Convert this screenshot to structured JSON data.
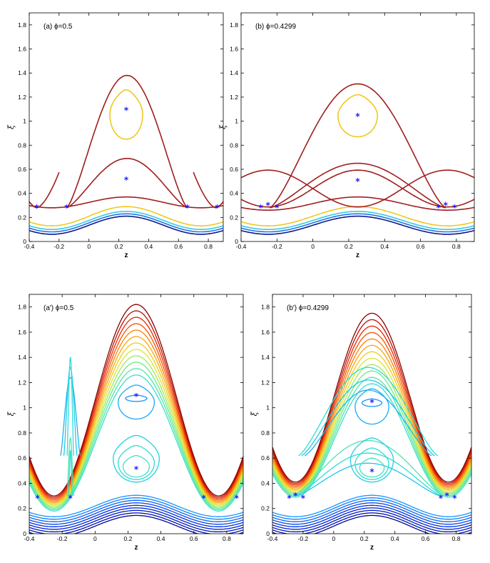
{
  "chart_data": [
    {
      "type": "line",
      "panel": "a",
      "title": "(a) ϕ=0.5",
      "xlabel": "z",
      "ylabel": "ξ",
      "xlim": [
        -0.4,
        0.9
      ],
      "ylim": [
        0,
        1.9
      ],
      "xticks": [
        -0.4,
        -0.2,
        0,
        0.2,
        0.4,
        0.6,
        0.8
      ],
      "xtick_labels": [
        "-0.4",
        "-0.2",
        "0",
        "0.2",
        "0.4",
        "0.6",
        "0.8"
      ],
      "yticks": [
        0,
        0.2,
        0.4,
        0.6,
        0.8,
        1,
        1.2,
        1.4,
        1.6,
        1.8
      ],
      "ytick_labels": [
        "0",
        "0.2",
        "0.4",
        "0.6",
        "0.8",
        "1",
        "1.2",
        "1.4",
        "1.6",
        "1.8"
      ],
      "series": [
        {
          "name": "open-1",
          "kind": "wave",
          "color": "#0d1a8c",
          "center": 0.135,
          "amp": 0.075
        },
        {
          "name": "open-2",
          "kind": "wave",
          "color": "#1e78e6",
          "center": 0.155,
          "amp": 0.075
        },
        {
          "name": "open-3",
          "kind": "wave",
          "color": "#3cc8e6",
          "center": 0.175,
          "amp": 0.075
        },
        {
          "name": "open-4",
          "kind": "wave",
          "color": "#f0c81e",
          "center": 0.21,
          "amp": 0.08
        },
        {
          "name": "separatrix-low",
          "kind": "wave",
          "color": "#a01e1e",
          "center": 0.325,
          "amp": 0.045
        },
        {
          "name": "separatrix-mid",
          "kind": "lobe",
          "color": "#a01e1e",
          "base": 0.28,
          "peak": 0.69,
          "bx": [
            -0.15,
            0.66
          ]
        },
        {
          "name": "separatrix-high",
          "kind": "lobe",
          "color": "#a01e1e",
          "base": 0.28,
          "peak": 1.38,
          "bx": [
            -0.15,
            0.66
          ]
        },
        {
          "name": "island-yellow",
          "kind": "island",
          "color": "#f0c81e",
          "cx": 0.25,
          "top": 1.26,
          "bottom": 0.85,
          "hw": 0.11
        },
        {
          "name": "edge-left",
          "kind": "edge",
          "color": "#a01e1e",
          "x0": -0.35
        },
        {
          "name": "edge-right",
          "kind": "edge",
          "color": "#a01e1e",
          "x0": 0.85
        }
      ],
      "critical_points": [
        {
          "x": 0.25,
          "y": 1.09
        },
        {
          "x": 0.25,
          "y": 0.51
        },
        {
          "x": -0.35,
          "y": 0.28
        },
        {
          "x": -0.15,
          "y": 0.28
        },
        {
          "x": 0.66,
          "y": 0.28
        },
        {
          "x": 0.86,
          "y": 0.28
        }
      ]
    },
    {
      "type": "line",
      "panel": "b",
      "title": "(b) ϕ=0.4299",
      "xlabel": "z",
      "ylabel": "ξ",
      "xlim": [
        -0.4,
        0.9
      ],
      "ylim": [
        0,
        1.9
      ],
      "xticks": [
        -0.4,
        -0.2,
        0,
        0.2,
        0.4,
        0.6,
        0.8
      ],
      "xtick_labels": [
        "-0.4",
        "-0.2",
        "0",
        "0.2",
        "0.4",
        "0.6",
        "0.8"
      ],
      "yticks": [
        0,
        0.2,
        0.4,
        0.6,
        0.8,
        1,
        1.2,
        1.4,
        1.6,
        1.8
      ],
      "ytick_labels": [
        "0",
        "0.2",
        "0.4",
        "0.6",
        "0.8",
        "1",
        "1.2",
        "1.4",
        "1.6",
        "1.8"
      ],
      "series": [
        {
          "name": "open-1",
          "kind": "wave",
          "color": "#0d1a8c",
          "center": 0.135,
          "amp": 0.075
        },
        {
          "name": "open-2",
          "kind": "wave",
          "color": "#1e78e6",
          "center": 0.155,
          "amp": 0.075
        },
        {
          "name": "open-3",
          "kind": "wave",
          "color": "#3cc8e6",
          "center": 0.175,
          "amp": 0.075
        },
        {
          "name": "open-4",
          "kind": "wave",
          "color": "#f0c81e",
          "center": 0.21,
          "amp": 0.08
        },
        {
          "name": "separatrix-low",
          "kind": "wave",
          "color": "#a01e1e",
          "center": 0.315,
          "amp": 0.055
        },
        {
          "name": "separatrix-mid",
          "kind": "lobe",
          "color": "#a01e1e",
          "base": 0.28,
          "peak": 0.65,
          "bx": [
            -0.24,
            0.74
          ]
        },
        {
          "name": "separatrix-high",
          "kind": "lobe",
          "color": "#a01e1e",
          "base": 0.28,
          "peak": 1.31,
          "bx": [
            -0.24,
            0.74
          ]
        },
        {
          "name": "island-yellow",
          "kind": "island",
          "color": "#f0c81e",
          "cx": 0.25,
          "top": 1.22,
          "bottom": 0.87,
          "hw": 0.11
        },
        {
          "name": "cross-left",
          "kind": "cross",
          "color": "#a01e1e",
          "center": 0.44,
          "amp": 0.17
        },
        {
          "name": "cross-right",
          "kind": "cross",
          "color": "#a01e1e",
          "center": 0.44,
          "amp": 0.17
        }
      ],
      "critical_points": [
        {
          "x": 0.25,
          "y": 1.04
        },
        {
          "x": 0.25,
          "y": 0.5
        },
        {
          "x": -0.29,
          "y": 0.28
        },
        {
          "x": -0.25,
          "y": 0.3
        },
        {
          "x": -0.2,
          "y": 0.28
        },
        {
          "x": 0.7,
          "y": 0.28
        },
        {
          "x": 0.74,
          "y": 0.3
        },
        {
          "x": 0.79,
          "y": 0.28
        }
      ]
    },
    {
      "type": "line",
      "panel": "a'",
      "title": "(a') ϕ=0.5",
      "xlabel": "z",
      "ylabel": "ξ",
      "xlim": [
        -0.4,
        0.9
      ],
      "ylim": [
        0,
        1.9
      ],
      "xticks": [
        -0.4,
        -0.2,
        0,
        0.2,
        0.4,
        0.6,
        0.8
      ],
      "xtick_labels": [
        "-0.4",
        "-0.2",
        "0",
        "0.2",
        "0.4",
        "0.6",
        "0.8"
      ],
      "yticks": [
        0,
        0.2,
        0.4,
        0.6,
        0.8,
        1,
        1.2,
        1.4,
        1.6,
        1.8
      ],
      "ytick_labels": [
        "0",
        "0.2",
        "0.4",
        "0.6",
        "0.8",
        "1",
        "1.2",
        "1.4",
        "1.6",
        "1.8"
      ],
      "family": {
        "lower": {
          "count": 9,
          "center_from": 0.06,
          "center_to": 0.22,
          "amp": 0.085
        },
        "upper": {
          "count": 12,
          "center_from": 0.72,
          "center_to": 1.06,
          "amp": 0.54
        },
        "islands_top": [
          1.24,
          1.32,
          1.4
        ],
        "islands_bottom": [
          0.56,
          0.66,
          0.76
        ],
        "islands_low": [
          0.62,
          0.7,
          0.78
        ],
        "inner_island": {
          "top": 1.1,
          "bottom": 1.05
        }
      },
      "critical_points": [
        {
          "x": 0.25,
          "y": 1.09
        },
        {
          "x": 0.25,
          "y": 0.51
        },
        {
          "x": -0.35,
          "y": 0.28
        },
        {
          "x": -0.15,
          "y": 0.28
        },
        {
          "x": 0.66,
          "y": 0.28
        },
        {
          "x": 0.86,
          "y": 0.28
        }
      ]
    },
    {
      "type": "line",
      "panel": "b'",
      "title": "(b') ϕ=0.4299",
      "xlabel": "z",
      "ylabel": "ξ",
      "xlim": [
        -0.4,
        0.9
      ],
      "ylim": [
        0,
        1.9
      ],
      "xticks": [
        -0.4,
        -0.2,
        0,
        0.2,
        0.4,
        0.6,
        0.8
      ],
      "xtick_labels": [
        "-0.4",
        "-0.2",
        "0",
        "0.2",
        "0.4",
        "0.6",
        "0.8"
      ],
      "yticks": [
        0,
        0.2,
        0.4,
        0.6,
        0.8,
        1,
        1.2,
        1.4,
        1.6,
        1.8
      ],
      "ytick_labels": [
        "0",
        "0.2",
        "0.4",
        "0.6",
        "0.8",
        "1",
        "1.2",
        "1.4",
        "1.6",
        "1.8"
      ],
      "family": {
        "lower": {
          "count": 9,
          "center_from": 0.06,
          "center_to": 0.22,
          "amp": 0.085
        },
        "upper": {
          "count": 12,
          "center_from": 0.74,
          "center_to": 1.08,
          "amp": 0.45
        },
        "islands_top": [
          1.14,
          1.22,
          1.32
        ],
        "islands_bottom": [
          0.56,
          0.64,
          0.74
        ],
        "islands_low": [
          0.6,
          0.68,
          0.76
        ],
        "inner_island": {
          "top": 1.07,
          "bottom": 1.01
        }
      },
      "critical_points": [
        {
          "x": 0.25,
          "y": 1.04
        },
        {
          "x": 0.25,
          "y": 0.49
        },
        {
          "x": -0.29,
          "y": 0.28
        },
        {
          "x": -0.25,
          "y": 0.3
        },
        {
          "x": -0.2,
          "y": 0.28
        },
        {
          "x": 0.7,
          "y": 0.28
        },
        {
          "x": 0.74,
          "y": 0.3
        },
        {
          "x": 0.79,
          "y": 0.28
        }
      ]
    }
  ]
}
